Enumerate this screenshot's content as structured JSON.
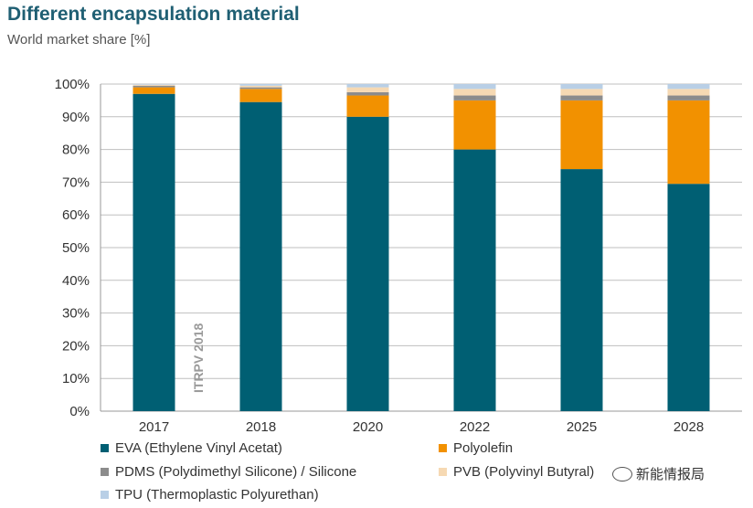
{
  "chart_data": {
    "type": "bar",
    "stacked": true,
    "title": "Different encapsulation material",
    "subtitle": "World market share [%]",
    "categories": [
      "2017",
      "2018",
      "2020",
      "2022",
      "2025",
      "2028"
    ],
    "series": [
      {
        "name": "EVA (Ethylene Vinyl Acetat)",
        "color": "#005f73",
        "values": [
          97,
          94.5,
          90,
          80,
          74,
          69.5
        ]
      },
      {
        "name": "Polyolefin",
        "color": "#f29100",
        "values": [
          2,
          4,
          6.5,
          15,
          21,
          25.5
        ]
      },
      {
        "name": "PDMS (Polydimethyl Silicone) / Silicone",
        "color": "#8c8c8c",
        "values": [
          0.5,
          0.5,
          1,
          1.5,
          1.5,
          1.5
        ]
      },
      {
        "name": "PVB (Polyvinyl Butyral)",
        "color": "#f6d9b3",
        "values": [
          0.3,
          0.5,
          1.5,
          2,
          2,
          2
        ]
      },
      {
        "name": "TPU (Thermoplastic Polyurethan)",
        "color": "#b9cfe6",
        "values": [
          0.2,
          0.5,
          1,
          1.5,
          1.5,
          1.5
        ]
      }
    ],
    "ylim": [
      0,
      100
    ],
    "yticks": [
      "0%",
      "10%",
      "20%",
      "30%",
      "40%",
      "50%",
      "60%",
      "70%",
      "80%",
      "90%",
      "100%"
    ],
    "grid": true,
    "annotation": "ITRPV 2018",
    "legend_position": "bottom"
  },
  "watermark": "新能情报局"
}
